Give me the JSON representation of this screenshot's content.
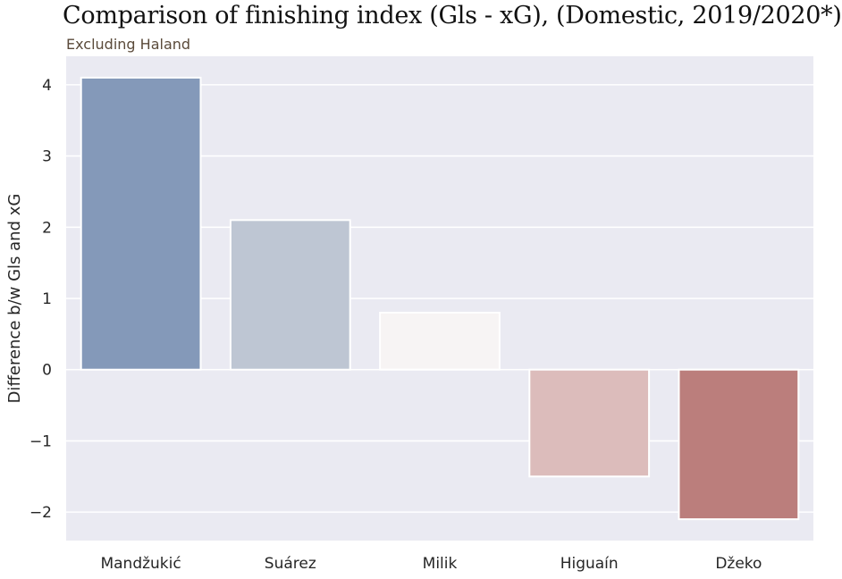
{
  "chart_data": {
    "type": "bar",
    "title": "Comparison of finishing index (Gls - xG), (Domestic, 2019/2020*)",
    "subtitle": "Excluding Haland",
    "xlabel": "",
    "ylabel": "Difference b/w Gls and xG",
    "categories": [
      "Mandžukić",
      "Suárez",
      "Milik",
      "Higuaín",
      "Džeko"
    ],
    "values": [
      4.1,
      2.1,
      0.8,
      -1.5,
      -2.1
    ],
    "colors": [
      "#8499b9",
      "#bec6d3",
      "#f7f4f4",
      "#dcbcbb",
      "#bb7e7c"
    ],
    "ylim": [
      -2.4,
      4.4
    ],
    "yticks": [
      4,
      3,
      2,
      1,
      0,
      -1,
      -2
    ],
    "ytick_labels": [
      "4",
      "3",
      "2",
      "1",
      "0",
      "−1",
      "−2"
    ],
    "grid": true,
    "background": "#eaeaf2"
  }
}
